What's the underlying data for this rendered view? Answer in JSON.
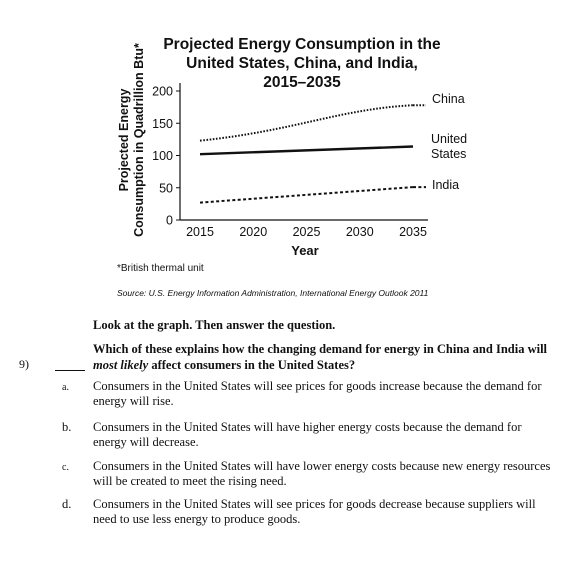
{
  "chart_data": {
    "type": "line",
    "title_lines": [
      "Projected Energy Consumption in the",
      "United States, China, and India,",
      "2015–2035"
    ],
    "ylabel_lines": [
      "Projected Energy",
      "Consumption in Quadrillion Btu*"
    ],
    "xlabel": "Year",
    "x": [
      2015,
      2035
    ],
    "xticks": [
      2015,
      2020,
      2025,
      2030,
      2035
    ],
    "yticks": [
      0,
      50,
      100,
      150,
      200
    ],
    "xlim": [
      2015,
      2035
    ],
    "ylim": [
      0,
      200
    ],
    "grid": false,
    "series": [
      {
        "name": "China",
        "values": [
          123,
          178
        ],
        "style": "dotted",
        "label_lines": [
          "China"
        ]
      },
      {
        "name": "United States",
        "values": [
          102,
          114
        ],
        "style": "solid",
        "label_lines": [
          "United",
          "States"
        ]
      },
      {
        "name": "India",
        "values": [
          27,
          51
        ],
        "style": "dashed",
        "label_lines": [
          "India"
        ]
      }
    ]
  },
  "footnote": "*British thermal unit",
  "source": "Source: U.S. Energy Information Administration, International Energy Outlook 2011",
  "instructions": "Look at the graph. Then answer the question.",
  "question": {
    "number": "9)",
    "text_before": "Which of these explains how the changing demand for energy in China and India will ",
    "emphasis": "most likely",
    "text_after": " affect consumers in the United States?"
  },
  "choices": [
    {
      "letter": "a.",
      "text": "Consumers in the United States will see prices for goods increase because the demand for energy will rise."
    },
    {
      "letter": "b.",
      "text": "Consumers in the United States will have higher energy costs because the demand for energy will decrease."
    },
    {
      "letter": "c.",
      "text": "Consumers in the United States will have lower energy costs because new energy resources will be created to meet the rising need."
    },
    {
      "letter": "d.",
      "text": "Consumers in the United States will see prices for goods decrease because suppliers will need to use less energy to produce goods."
    }
  ],
  "colors": {
    "ink": "#111111",
    "background": "#ffffff"
  }
}
